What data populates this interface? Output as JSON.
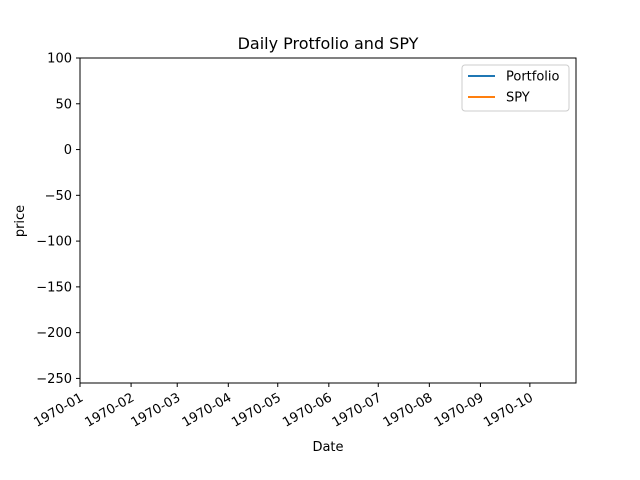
{
  "chart_data": {
    "type": "line",
    "title": "Daily Protfolio and SPY",
    "xlabel": "Date",
    "ylabel": "price",
    "x_axis_type": "date",
    "xlim": [
      "1970-01-01",
      "1970-10-29"
    ],
    "ylim": [
      -255,
      100
    ],
    "x_ticks": [
      "1970-01",
      "1970-02",
      "1970-03",
      "1970-04",
      "1970-05",
      "1970-06",
      "1970-07",
      "1970-08",
      "1970-09",
      "1970-10"
    ],
    "y_ticks": [
      100,
      50,
      0,
      -50,
      -100,
      -150,
      -200,
      -250
    ],
    "y_tick_labels": [
      "100",
      "50",
      "0",
      "−50",
      "−100",
      "−150",
      "−200",
      "−250"
    ],
    "grid": false,
    "legend_position": "top-right",
    "series": [
      {
        "name": "Portfolio",
        "color": "#1f77b4",
        "points": []
      },
      {
        "name": "SPY",
        "color": "#ff7f0e",
        "points": []
      }
    ]
  }
}
